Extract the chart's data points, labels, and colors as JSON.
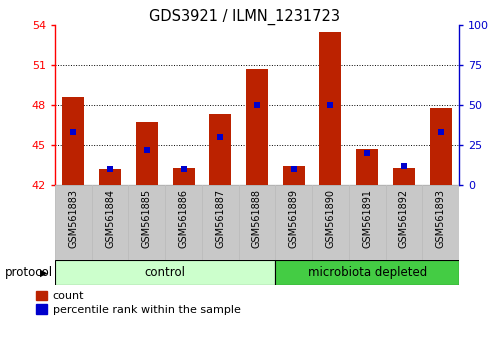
{
  "title": "GDS3921 / ILMN_1231723",
  "samples": [
    "GSM561883",
    "GSM561884",
    "GSM561885",
    "GSM561886",
    "GSM561887",
    "GSM561888",
    "GSM561889",
    "GSM561890",
    "GSM561891",
    "GSM561892",
    "GSM561893"
  ],
  "count_values": [
    48.6,
    43.2,
    46.7,
    43.3,
    47.3,
    50.7,
    43.4,
    53.5,
    44.7,
    43.3,
    47.8
  ],
  "percentile_values": [
    33,
    10,
    22,
    10,
    30,
    50,
    10,
    50,
    20,
    12,
    33
  ],
  "baseline": 42,
  "ylim_left": [
    42,
    54
  ],
  "ylim_right": [
    0,
    100
  ],
  "yticks_left": [
    42,
    45,
    48,
    51,
    54
  ],
  "yticks_right": [
    0,
    25,
    50,
    75,
    100
  ],
  "bar_color": "#bb2200",
  "blue_color": "#0000cc",
  "control_samples": 6,
  "control_label": "control",
  "microbiota_label": "microbiota depleted",
  "protocol_label": "protocol",
  "control_color": "#ccffcc",
  "microbiota_color": "#44cc44",
  "legend_count": "count",
  "legend_percentile": "percentile rank within the sample",
  "bar_width": 0.6,
  "tick_label_gray": "#c8c8c8"
}
